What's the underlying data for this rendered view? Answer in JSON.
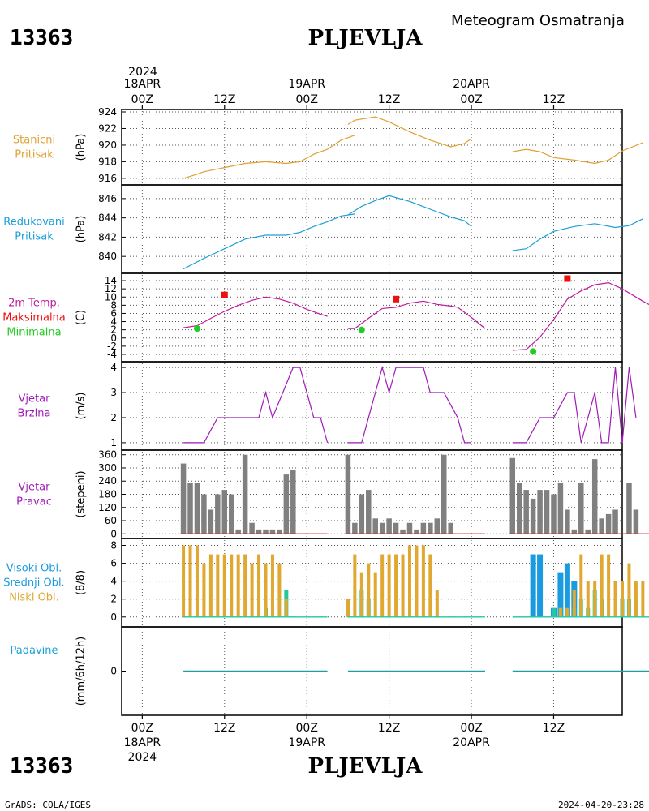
{
  "header": {
    "station_id": "13363",
    "station_name": "PLJEVLJA",
    "subtitle": "Meteogram Osmatranja"
  },
  "footer": {
    "station_id": "13363",
    "station_name": "PLJEVLJA",
    "credit": "GrADS: COLA/IGES",
    "timestamp": "2024-04-20-23:28"
  },
  "time_axis": {
    "top_year": "2024",
    "top_labels": [
      {
        "hour": 0,
        "line1": "18APR",
        "line2": "00Z"
      },
      {
        "hour": 12,
        "line1": "",
        "line2": "12Z"
      },
      {
        "hour": 24,
        "line1": "19APR",
        "line2": "00Z"
      },
      {
        "hour": 36,
        "line1": "",
        "line2": "12Z"
      },
      {
        "hour": 48,
        "line1": "20APR",
        "line2": "00Z"
      },
      {
        "hour": 60,
        "line1": "",
        "line2": "12Z"
      }
    ],
    "bottom_labels": [
      {
        "hour": 0,
        "line1": "00Z",
        "line2": "18APR",
        "line3": "2024"
      },
      {
        "hour": 12,
        "line1": "12Z",
        "line2": "",
        "line3": ""
      },
      {
        "hour": 24,
        "line1": "00Z",
        "line2": "19APR",
        "line3": ""
      },
      {
        "hour": 36,
        "line1": "12Z",
        "line2": "",
        "line3": ""
      },
      {
        "hour": 48,
        "line1": "00Z",
        "line2": "20APR",
        "line3": ""
      },
      {
        "hour": 60,
        "line1": "12Z",
        "line2": "",
        "line3": ""
      }
    ],
    "range_hours": [
      -3,
      70
    ]
  },
  "colors": {
    "station_pressure": "#e0a030",
    "reduced_pressure": "#1aa0d8",
    "temperature": "#c01aa0",
    "tmax": "#ee1010",
    "tmin": "#22cc22",
    "wind": "#a01ab8",
    "bars_gray": "#808080",
    "high_cloud": "#1a9be0",
    "mid_cloud": "#22c8a0",
    "low_cloud": "#e0a830",
    "precip": "#1aa0a0"
  },
  "panels": [
    {
      "key": "station_pressure",
      "label_lines": [
        "Stanicni",
        "Pritisak"
      ],
      "label_colors": [
        "#e0a030",
        "#e0a030"
      ],
      "unit": "(hPa)"
    },
    {
      "key": "reduced_pressure",
      "label_lines": [
        "Redukovani",
        "Pritisak"
      ],
      "label_colors": [
        "#1aa0d8",
        "#1aa0d8"
      ],
      "unit": "(hPa)"
    },
    {
      "key": "temperature",
      "label_lines": [
        "2m Temp.",
        "Maksimalna",
        "Minimalna"
      ],
      "label_colors": [
        "#c01aa0",
        "#ee1010",
        "#22cc22"
      ],
      "unit": "(C)"
    },
    {
      "key": "wind_speed",
      "label_lines": [
        "Vjetar",
        "Brzina"
      ],
      "label_colors": [
        "#a01ab8",
        "#a01ab8"
      ],
      "unit": "(m/s)"
    },
    {
      "key": "wind_dir",
      "label_lines": [
        "Vjetar",
        "Pravac"
      ],
      "label_colors": [
        "#a01ab8",
        "#a01ab8"
      ],
      "unit": "(stepeni)"
    },
    {
      "key": "clouds",
      "label_lines": [
        "Visoki Obl.",
        "Srednji Obl.",
        "Niski Obl."
      ],
      "label_colors": [
        "#1a9be0",
        "#1a9be0",
        "#e0a830"
      ],
      "unit": "(8/8)"
    },
    {
      "key": "precip",
      "label_lines": [
        "Padavine"
      ],
      "label_colors": [
        "#1aa0d8"
      ],
      "unit": "(mm/6h/12h)"
    }
  ],
  "chart_data": [
    {
      "type": "line",
      "name": "station_pressure",
      "ylabel": "(hPa)",
      "ylim": [
        915.5,
        924
      ],
      "yticks": [
        916,
        918,
        920,
        922,
        924
      ],
      "segments": [
        [
          [
            6,
            916
          ],
          [
            8,
            916.5
          ],
          [
            9,
            916.8
          ],
          [
            12,
            917.3
          ],
          [
            15,
            917.8
          ],
          [
            18,
            918
          ],
          [
            21,
            917.8
          ],
          [
            23,
            918
          ],
          [
            25,
            918.9
          ],
          [
            27,
            919.5
          ],
          [
            29,
            920.6
          ],
          [
            31,
            921.2
          ]
        ],
        [
          [
            30,
            922.5
          ],
          [
            31,
            923
          ],
          [
            34,
            923.4
          ],
          [
            36,
            922.8
          ],
          [
            39,
            921.6
          ],
          [
            42,
            920.6
          ],
          [
            45,
            919.8
          ],
          [
            47,
            920.2
          ],
          [
            48,
            920.8
          ]
        ],
        [
          [
            54,
            919.2
          ],
          [
            56,
            919.5
          ],
          [
            58,
            919.2
          ],
          [
            60,
            918.5
          ],
          [
            63,
            918.2
          ],
          [
            66,
            917.8
          ],
          [
            68,
            918.2
          ],
          [
            70,
            919.3
          ],
          [
            73,
            920.3
          ]
        ]
      ]
    },
    {
      "type": "line",
      "name": "reduced_pressure",
      "ylabel": "(hPa)",
      "ylim": [
        838.5,
        847
      ],
      "yticks": [
        840,
        842,
        844,
        846
      ],
      "segments": [
        [
          [
            6,
            838.7
          ],
          [
            9,
            839.8
          ],
          [
            12,
            840.8
          ],
          [
            15,
            841.8
          ],
          [
            18,
            842.2
          ],
          [
            21,
            842.2
          ],
          [
            23,
            842.5
          ],
          [
            25,
            843.1
          ],
          [
            27,
            843.6
          ],
          [
            29,
            844.2
          ],
          [
            31,
            844.4
          ]
        ],
        [
          [
            30,
            844.3
          ],
          [
            32,
            845.2
          ],
          [
            34,
            845.8
          ],
          [
            36,
            846.3
          ],
          [
            39,
            845.7
          ],
          [
            42,
            844.9
          ],
          [
            45,
            844.1
          ],
          [
            47,
            843.7
          ],
          [
            48,
            843.1
          ]
        ],
        [
          [
            54,
            840.6
          ],
          [
            56,
            840.8
          ],
          [
            58,
            841.8
          ],
          [
            60,
            842.6
          ],
          [
            63,
            843.1
          ],
          [
            66,
            843.4
          ],
          [
            69,
            843
          ],
          [
            71,
            843.2
          ],
          [
            73,
            843.9
          ]
        ]
      ]
    },
    {
      "type": "line",
      "name": "temperature_2m",
      "ylabel": "(C)",
      "ylim": [
        -5,
        15
      ],
      "yticks": [
        -4,
        -2,
        0,
        2,
        4,
        6,
        8,
        10,
        12,
        14
      ],
      "segments": [
        [
          [
            6,
            2.5
          ],
          [
            8,
            3
          ],
          [
            10,
            4.8
          ],
          [
            12,
            6.5
          ],
          [
            14,
            8
          ],
          [
            16,
            9.2
          ],
          [
            18,
            10
          ],
          [
            20,
            9.5
          ],
          [
            22,
            8.5
          ],
          [
            24,
            7
          ],
          [
            26,
            5.8
          ],
          [
            27,
            5.3
          ]
        ],
        [
          [
            30,
            2.3
          ],
          [
            31,
            2.3
          ],
          [
            33,
            4.8
          ],
          [
            35,
            7.2
          ],
          [
            37,
            7.5
          ],
          [
            39,
            8.5
          ],
          [
            41,
            9
          ],
          [
            43,
            8.2
          ],
          [
            45,
            7.8
          ],
          [
            46,
            7.5
          ],
          [
            48,
            5
          ],
          [
            50,
            2.3
          ]
        ],
        [
          [
            54,
            -3
          ],
          [
            56,
            -2.8
          ],
          [
            58,
            0.2
          ],
          [
            60,
            4.5
          ],
          [
            62,
            9.5
          ],
          [
            64,
            11.5
          ],
          [
            66,
            13
          ],
          [
            68,
            13.5
          ],
          [
            70,
            12
          ],
          [
            72,
            10
          ],
          [
            73,
            9
          ],
          [
            75,
            7.2
          ]
        ]
      ],
      "tmax": [
        [
          12,
          10.5
        ],
        [
          37,
          9.5
        ],
        [
          62,
          14.5
        ]
      ],
      "tmin": [
        [
          8,
          2.3
        ],
        [
          32,
          2
        ],
        [
          57,
          -3.3
        ]
      ]
    },
    {
      "type": "line",
      "name": "wind_speed",
      "ylabel": "(m/s)",
      "ylim": [
        0.9,
        4.1
      ],
      "yticks": [
        1,
        2,
        3,
        4
      ],
      "segments": [
        [
          [
            6,
            1
          ],
          [
            9,
            1
          ],
          [
            11,
            2
          ],
          [
            13,
            2
          ],
          [
            15,
            2
          ],
          [
            17,
            2
          ],
          [
            18,
            3
          ],
          [
            19,
            2
          ],
          [
            22,
            4
          ],
          [
            23,
            4
          ],
          [
            25,
            2
          ],
          [
            26,
            2
          ],
          [
            27,
            1
          ]
        ],
        [
          [
            30,
            1
          ],
          [
            32,
            1
          ],
          [
            34,
            3
          ],
          [
            35,
            4
          ],
          [
            36,
            3
          ],
          [
            37,
            4
          ],
          [
            39,
            4
          ],
          [
            41,
            4
          ],
          [
            42,
            3
          ],
          [
            43,
            3
          ],
          [
            44,
            3
          ],
          [
            46,
            2
          ],
          [
            47,
            1
          ],
          [
            48,
            1
          ]
        ],
        [
          [
            54,
            1
          ],
          [
            56,
            1
          ],
          [
            58,
            2
          ],
          [
            60,
            2
          ],
          [
            62,
            3
          ],
          [
            63,
            3
          ],
          [
            64,
            1
          ],
          [
            66,
            3
          ],
          [
            67,
            1
          ],
          [
            68,
            1
          ],
          [
            69,
            4
          ],
          [
            70,
            1
          ],
          [
            71,
            4
          ],
          [
            72,
            2
          ]
        ]
      ]
    },
    {
      "type": "bar",
      "name": "wind_direction",
      "ylabel": "(stepeni)",
      "ylim": [
        -10,
        370
      ],
      "yticks": [
        0,
        60,
        120,
        180,
        240,
        300,
        360
      ],
      "x": [
        6,
        7,
        8,
        9,
        10,
        11,
        12,
        13,
        14,
        15,
        16,
        17,
        18,
        19,
        20,
        21,
        22,
        23,
        30,
        31,
        32,
        33,
        34,
        35,
        36,
        37,
        38,
        39,
        40,
        41,
        42,
        43,
        44,
        45,
        46,
        47,
        54,
        55,
        56,
        57,
        58,
        59,
        60,
        61,
        62,
        63,
        64,
        65,
        66,
        67,
        68,
        69,
        70,
        71,
        72
      ],
      "values": [
        320,
        230,
        230,
        180,
        110,
        180,
        200,
        180,
        20,
        360,
        50,
        20,
        20,
        20,
        20,
        270,
        290,
        0,
        360,
        50,
        180,
        200,
        70,
        50,
        70,
        50,
        20,
        50,
        20,
        50,
        50,
        70,
        360,
        50,
        0,
        0,
        345,
        230,
        200,
        160,
        200,
        200,
        180,
        230,
        110,
        20,
        230,
        20,
        340,
        70,
        90,
        110,
        0,
        230,
        110
      ]
    },
    {
      "type": "bar",
      "name": "clouds",
      "ylabel": "(8/8)",
      "ylim": [
        -0.2,
        8.5
      ],
      "yticks": [
        0,
        2,
        4,
        6,
        8
      ],
      "x": [
        6,
        7,
        8,
        9,
        10,
        11,
        12,
        13,
        14,
        15,
        16,
        17,
        18,
        19,
        20,
        21,
        30,
        31,
        32,
        33,
        34,
        35,
        36,
        37,
        38,
        39,
        40,
        41,
        42,
        43,
        44,
        45,
        46,
        54,
        55,
        56,
        57,
        58,
        59,
        60,
        61,
        62,
        63,
        64,
        65,
        66,
        67,
        68,
        69,
        70,
        71,
        72,
        73
      ],
      "series": [
        {
          "name": "Visoki Obl.",
          "values": [
            0,
            0,
            0,
            0,
            0,
            0,
            0,
            0,
            0,
            0,
            0,
            0,
            0,
            0,
            0,
            0,
            0,
            0,
            0,
            0,
            0,
            0,
            0,
            0,
            0,
            0,
            0,
            0,
            0,
            0,
            0,
            0,
            0,
            0,
            0,
            0,
            7,
            7,
            0,
            1,
            5,
            6,
            4,
            0,
            0,
            0,
            0,
            0,
            0,
            0,
            0,
            0,
            0
          ]
        },
        {
          "name": "Srednji Obl.",
          "values": [
            0,
            0,
            0,
            0,
            0,
            0,
            0,
            0,
            0,
            0,
            0,
            0,
            1,
            0,
            0,
            3,
            2,
            0,
            3,
            2,
            0,
            0,
            0,
            0,
            0,
            0,
            0,
            0,
            0,
            0,
            0,
            0,
            0,
            0,
            0,
            0,
            0,
            0,
            0,
            1,
            1,
            1,
            1,
            2,
            1,
            3,
            2,
            0,
            0,
            2,
            2,
            2,
            0
          ]
        },
        {
          "name": "Niski Obl.",
          "values": [
            8,
            8,
            8,
            6,
            7,
            7,
            7,
            7,
            7,
            7,
            6,
            7,
            6,
            7,
            6,
            2,
            2,
            7,
            5,
            6,
            5,
            7,
            7,
            7,
            7,
            8,
            8,
            8,
            7,
            3,
            0,
            0,
            0,
            0,
            0,
            0,
            0,
            0,
            0,
            0,
            1,
            1,
            3,
            7,
            4,
            4,
            7,
            7,
            4,
            4,
            6,
            4,
            4
          ]
        }
      ]
    },
    {
      "type": "line",
      "name": "precipitation",
      "ylabel": "(mm/6h/12h)",
      "ylim": [
        -1,
        1
      ],
      "yticks": [
        0
      ],
      "segments": [
        [
          [
            6,
            0
          ],
          [
            27,
            0
          ]
        ],
        [
          [
            30,
            0
          ],
          [
            50,
            0
          ]
        ],
        [
          [
            54,
            0
          ],
          [
            75,
            0
          ]
        ]
      ]
    }
  ]
}
